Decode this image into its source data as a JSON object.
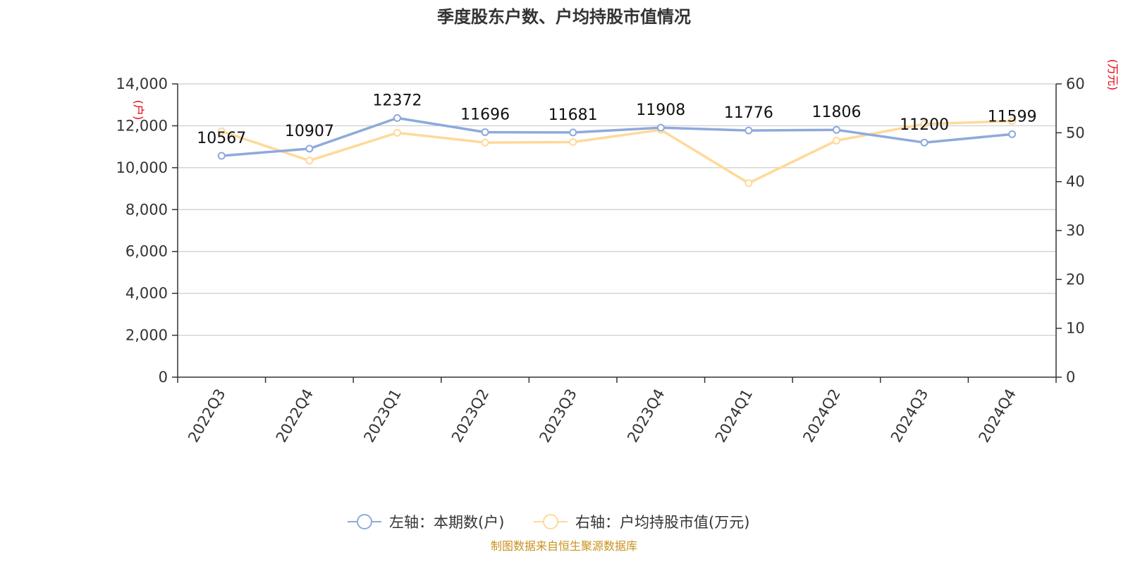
{
  "chart_data": {
    "type": "line",
    "title": "季度股东户数、户均持股市值情况",
    "categories": [
      "2022Q3",
      "2022Q4",
      "2023Q1",
      "2023Q2",
      "2023Q3",
      "2023Q4",
      "2024Q1",
      "2024Q2",
      "2024Q3",
      "2024Q4"
    ],
    "left_axis": {
      "unit": "(户)",
      "ylim": [
        0,
        14000
      ],
      "ticks": [
        "0",
        "2,000",
        "4,000",
        "6,000",
        "8,000",
        "10,000",
        "12,000",
        "14,000"
      ]
    },
    "right_axis": {
      "unit": "(万元)",
      "ylim": [
        0,
        60
      ],
      "ticks": [
        "0",
        "10",
        "20",
        "30",
        "40",
        "50",
        "60"
      ]
    },
    "series": [
      {
        "name": "左轴：本期数(户)",
        "axis": "left",
        "color": "#8eaadb",
        "values": [
          10567,
          10907,
          12372,
          11696,
          11681,
          11908,
          11776,
          11806,
          11200,
          11599
        ],
        "labels": [
          "10567",
          "10907",
          "12372",
          "11696",
          "11681",
          "11908",
          "11776",
          "11806",
          "11200",
          "11599"
        ]
      },
      {
        "name": "右轴：户均持股市值(万元)",
        "axis": "right",
        "color": "#ffd999",
        "values": [
          50.3,
          44.3,
          50.0,
          48.0,
          48.1,
          50.6,
          39.7,
          48.4,
          51.8,
          52.4
        ]
      }
    ],
    "grid": true,
    "legend_position": "bottom-center",
    "unit_color": "#e8000b"
  },
  "source": "制图数据来自恒生聚源数据库",
  "source_color": "#c8921e"
}
